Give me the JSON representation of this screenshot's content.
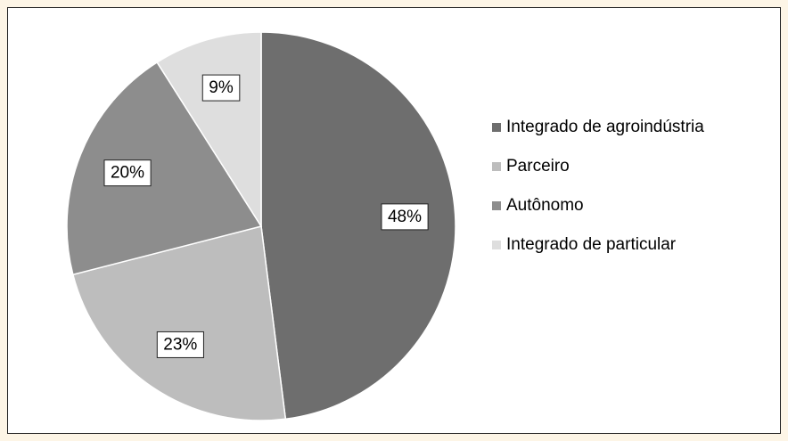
{
  "chart_data": {
    "type": "pie",
    "categories": [
      "Integrado de agroindústria",
      "Parceiro",
      "Autônomo",
      "Integrado de particular"
    ],
    "values": [
      48,
      23,
      20,
      9
    ],
    "value_labels": [
      "48%",
      "23%",
      "20%",
      "9%"
    ],
    "colors": [
      "#6e6e6e",
      "#bdbdbd",
      "#8d8d8d",
      "#dedede"
    ],
    "legend": "right"
  }
}
